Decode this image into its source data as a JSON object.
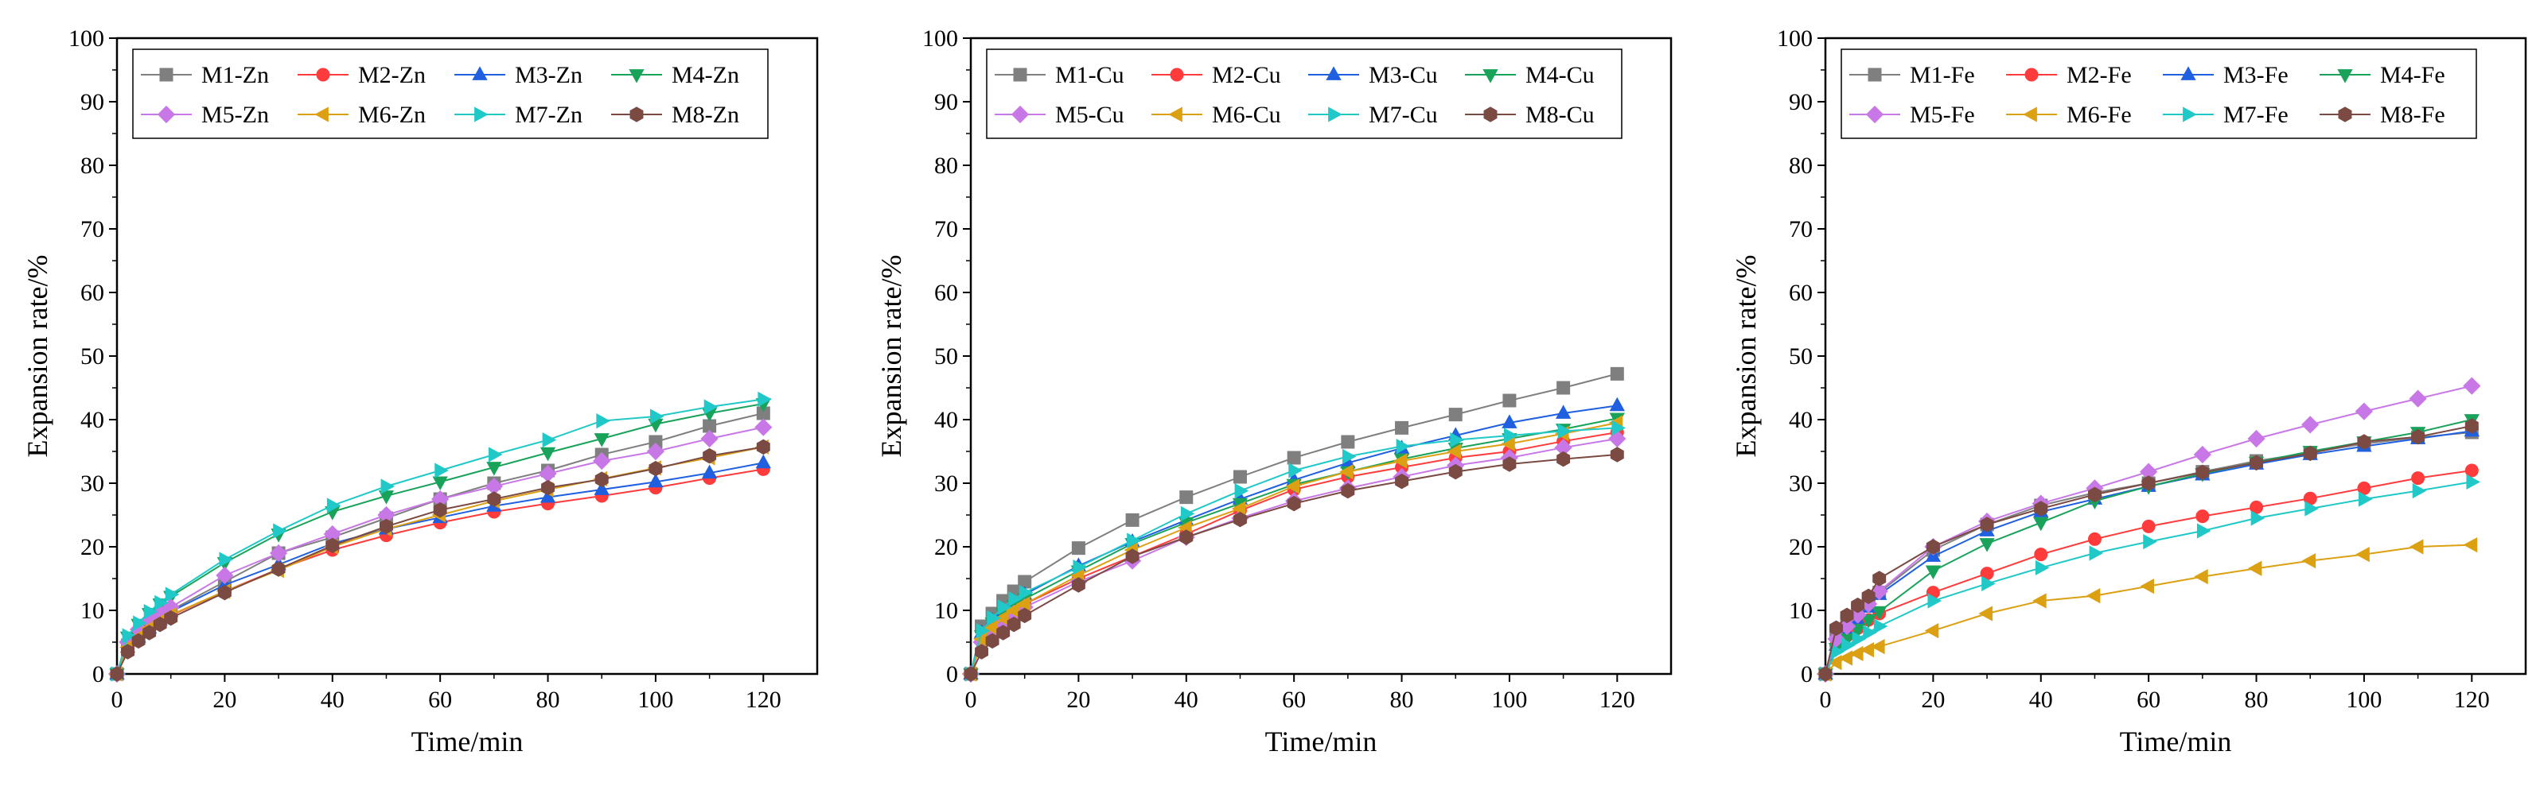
{
  "chart_data": [
    {
      "type": "line",
      "title": "",
      "xlabel": "Time/min",
      "ylabel": "Expansion rate/%",
      "xlim": [
        0,
        130
      ],
      "ylim": [
        0,
        100
      ],
      "xticks": [
        0,
        20,
        40,
        60,
        80,
        100,
        120
      ],
      "yticks": [
        0,
        10,
        20,
        30,
        40,
        50,
        60,
        70,
        80,
        90,
        100
      ],
      "legend_position": "top-left",
      "x": [
        0,
        2,
        4,
        6,
        8,
        10,
        20,
        30,
        40,
        50,
        60,
        70,
        80,
        90,
        100,
        110,
        120
      ],
      "series": [
        {
          "name": "M1-Zn",
          "values": [
            0,
            4.5,
            6,
            7.5,
            8.8,
            10,
            14.5,
            19,
            21.5,
            24.5,
            27.5,
            30,
            32,
            34.5,
            36.5,
            39,
            41
          ]
        },
        {
          "name": "M2-Zn",
          "values": [
            0,
            4,
            5.5,
            6.8,
            8,
            9.2,
            13,
            16.5,
            19.5,
            21.8,
            23.8,
            25.5,
            26.8,
            28,
            29.3,
            30.8,
            32.2
          ]
        },
        {
          "name": "M3-Zn",
          "values": [
            0,
            4.2,
            5.8,
            7.2,
            8.5,
            9.8,
            14,
            17.2,
            20.5,
            22.8,
            24.6,
            26.4,
            27.8,
            29,
            30.2,
            31.6,
            33.2
          ]
        },
        {
          "name": "M4-Zn",
          "values": [
            0,
            5.8,
            7.8,
            9.5,
            11,
            12.2,
            17.5,
            22,
            25.5,
            28,
            30.2,
            32.5,
            34.8,
            37,
            39.3,
            41,
            42.5
          ]
        },
        {
          "name": "M5-Zn",
          "values": [
            0,
            5,
            7,
            8.5,
            9.5,
            10.5,
            15.5,
            19,
            22,
            25,
            27.5,
            29.5,
            31.5,
            33.5,
            35,
            37,
            38.8
          ]
        },
        {
          "name": "M6-Zn",
          "values": [
            0,
            4.2,
            5.8,
            7.2,
            8.3,
            9.3,
            13,
            16.3,
            20,
            22.8,
            25,
            27.2,
            29,
            30.7,
            32.4,
            34,
            35.7
          ]
        },
        {
          "name": "M7-Zn",
          "values": [
            0,
            6,
            8,
            9.8,
            11.2,
            12.5,
            18,
            22.5,
            26.5,
            29.5,
            32,
            34.5,
            36.8,
            39.8,
            40.5,
            42,
            43.2
          ]
        },
        {
          "name": "M8-Zn",
          "values": [
            0,
            3.5,
            5.2,
            6.5,
            7.8,
            8.8,
            12.8,
            16.5,
            20.2,
            23.2,
            25.8,
            27.5,
            29.3,
            30.6,
            32.3,
            34.3,
            35.7
          ]
        }
      ],
      "legend": [
        "M1-Zn",
        "M2-Zn",
        "M3-Zn",
        "M4-Zn",
        "M5-Zn",
        "M6-Zn",
        "M7-Zn",
        "M8-Zn"
      ]
    },
    {
      "type": "line",
      "title": "",
      "xlabel": "Time/min",
      "ylabel": "Expansion rate/%",
      "xlim": [
        0,
        130
      ],
      "ylim": [
        0,
        100
      ],
      "xticks": [
        0,
        20,
        40,
        60,
        80,
        100,
        120
      ],
      "yticks": [
        0,
        10,
        20,
        30,
        40,
        50,
        60,
        70,
        80,
        90,
        100
      ],
      "legend_position": "top-left",
      "x": [
        0,
        2,
        4,
        6,
        8,
        10,
        20,
        30,
        40,
        50,
        60,
        70,
        80,
        90,
        100,
        110,
        120
      ],
      "series": [
        {
          "name": "M1-Cu",
          "values": [
            0,
            7.5,
            9.5,
            11.5,
            13,
            14.5,
            19.8,
            24.2,
            27.8,
            31,
            34,
            36.5,
            38.7,
            40.8,
            43,
            45,
            47.2
          ]
        },
        {
          "name": "M2-Cu",
          "values": [
            0,
            5.5,
            7.3,
            8.8,
            10,
            11,
            15,
            18.5,
            22,
            25.7,
            29,
            31,
            32.5,
            34,
            35,
            36.6,
            38
          ]
        },
        {
          "name": "M3-Cu",
          "values": [
            0,
            6.5,
            8.4,
            10,
            11.3,
            12.5,
            17,
            20.8,
            24.2,
            27.5,
            30.5,
            33.2,
            35.5,
            37.5,
            39.5,
            41,
            42.2
          ]
        },
        {
          "name": "M4-Cu",
          "values": [
            0,
            6,
            8,
            9.5,
            10.8,
            11.8,
            16.2,
            20.5,
            23.8,
            26.8,
            29.8,
            31.8,
            33.8,
            35.5,
            37,
            38.5,
            40.2
          ]
        },
        {
          "name": "M5-Cu",
          "values": [
            0,
            5,
            6.8,
            8.2,
            9.5,
            10.5,
            14.5,
            17.8,
            21.5,
            24.5,
            27.2,
            29.2,
            31,
            32.8,
            34,
            35.6,
            37
          ]
        },
        {
          "name": "M6-Cu",
          "values": [
            0,
            5.5,
            7.3,
            8.8,
            10,
            11,
            15.5,
            19.5,
            23,
            26,
            29.5,
            31.8,
            33.5,
            35,
            36.2,
            37.8,
            39.5
          ]
        },
        {
          "name": "M7-Cu",
          "values": [
            0,
            6.8,
            8.8,
            10.5,
            11.8,
            12.8,
            16.8,
            21,
            25.2,
            28.8,
            32,
            34.2,
            35.8,
            36.8,
            37.5,
            38.2,
            38.7
          ]
        },
        {
          "name": "M8-Cu",
          "values": [
            0,
            3.5,
            5.2,
            6.5,
            7.8,
            9.2,
            14,
            18.5,
            21.5,
            24.3,
            26.8,
            28.8,
            30.3,
            31.8,
            33,
            33.8,
            34.5
          ]
        }
      ],
      "legend": [
        "M1-Cu",
        "M2-Cu",
        "M3-Cu",
        "M4-Cu",
        "M5-Cu",
        "M6-Cu",
        "M7-Cu",
        "M8-Cu"
      ]
    },
    {
      "type": "line",
      "title": "",
      "xlabel": "Time/min",
      "ylabel": "Expansion rate/%",
      "xlim": [
        0,
        130
      ],
      "ylim": [
        0,
        100
      ],
      "xticks": [
        0,
        20,
        40,
        60,
        80,
        100,
        120
      ],
      "yticks": [
        0,
        10,
        20,
        30,
        40,
        50,
        60,
        70,
        80,
        90,
        100
      ],
      "legend_position": "top-left",
      "x": [
        0,
        2,
        4,
        6,
        8,
        10,
        20,
        30,
        40,
        50,
        60,
        70,
        80,
        90,
        100,
        110,
        120
      ],
      "series": [
        {
          "name": "M1-Fe",
          "values": [
            0,
            6.5,
            8.3,
            10,
            11.5,
            12.8,
            19.5,
            23.5,
            26.5,
            28.5,
            30,
            31.8,
            33.5,
            34.8,
            36.2,
            37.2,
            38
          ]
        },
        {
          "name": "M2-Fe",
          "values": [
            0,
            4.5,
            6,
            7.2,
            8.5,
            9.5,
            12.8,
            15.8,
            18.8,
            21.2,
            23.2,
            24.8,
            26.2,
            27.6,
            29.2,
            30.8,
            32
          ]
        },
        {
          "name": "M3-Fe",
          "values": [
            0,
            4.5,
            6.5,
            8.5,
            10.5,
            12.5,
            18.5,
            22.5,
            25.5,
            27.5,
            29.5,
            31.3,
            33,
            34.5,
            35.8,
            37,
            38.2
          ]
        },
        {
          "name": "M4-Fe",
          "values": [
            0,
            4,
            5.5,
            7,
            8.5,
            9.8,
            16.2,
            20.5,
            23.8,
            27.2,
            29.5,
            31.5,
            33.3,
            35,
            36.5,
            38,
            40
          ]
        },
        {
          "name": "M5-Fe",
          "values": [
            0,
            5.5,
            7.5,
            9.3,
            11,
            13,
            20,
            24,
            26.8,
            29.2,
            31.8,
            34.5,
            37,
            39.2,
            41.3,
            43.3,
            45.3
          ]
        },
        {
          "name": "M6-Fe",
          "values": [
            0,
            1.8,
            2.5,
            3.2,
            3.8,
            4.3,
            6.8,
            9.5,
            11.5,
            12.3,
            13.8,
            15.3,
            16.6,
            17.8,
            18.8,
            20,
            20.3
          ]
        },
        {
          "name": "M7-Fe",
          "values": [
            0,
            3.5,
            4.5,
            5.5,
            6.5,
            7.5,
            11.5,
            14.2,
            16.7,
            19,
            20.8,
            22.5,
            24.5,
            26,
            27.5,
            28.8,
            30.2
          ]
        },
        {
          "name": "M8-Fe",
          "values": [
            0,
            7.2,
            9.2,
            10.8,
            12.2,
            15,
            20,
            23.5,
            26,
            28.2,
            30,
            31.7,
            33.2,
            34.7,
            36.5,
            37.3,
            39
          ]
        }
      ],
      "legend": [
        "M1-Fe",
        "M2-Fe",
        "M3-Fe",
        "M4-Fe",
        "M5-Fe",
        "M6-Fe",
        "M7-Fe",
        "M8-Fe"
      ]
    }
  ],
  "series_styles": [
    {
      "color": "#7f7f7f",
      "marker": "square"
    },
    {
      "color": "#ff3b3b",
      "marker": "circle"
    },
    {
      "color": "#1f5fe0",
      "marker": "triangle-up"
    },
    {
      "color": "#19a35a",
      "marker": "triangle-down"
    },
    {
      "color": "#c878e6",
      "marker": "diamond"
    },
    {
      "color": "#dca013",
      "marker": "triangle-left"
    },
    {
      "color": "#21c8c8",
      "marker": "triangle-right"
    },
    {
      "color": "#7a4a43",
      "marker": "hexagon"
    }
  ]
}
